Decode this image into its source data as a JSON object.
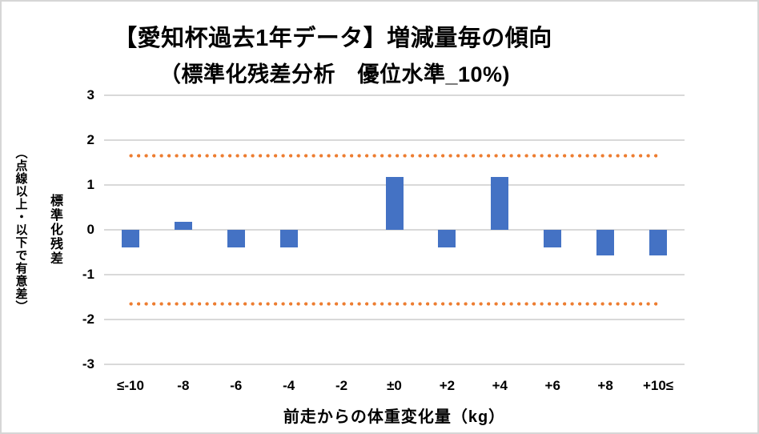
{
  "frame": {
    "background": "#ffffff",
    "border_color": "#d6d6d6"
  },
  "chart_data": {
    "type": "bar",
    "title_line1": "【愛知杯過去1年データ】増減量毎の傾向",
    "title_line2": "（標準化残差分析　優位水準_10%)",
    "categories": [
      "≤-10",
      "-8",
      "-6",
      "-4",
      "-2",
      "±0",
      "+2",
      "+4",
      "+6",
      "+8",
      "+10≤"
    ],
    "values": [
      -0.4,
      0.18,
      -0.4,
      -0.4,
      0,
      1.17,
      -0.4,
      1.17,
      -0.4,
      -0.57,
      -0.57
    ],
    "xlabel": "前走からの体重変化量（kg）",
    "ylabel_main": "標準化残差",
    "ylabel_note": "（点線以上・以下で有意差）",
    "ylim": [
      -3,
      3
    ],
    "yticks": [
      3,
      2,
      1,
      0,
      -1,
      -2,
      -3
    ],
    "significance_upper": 1.645,
    "significance_lower": -1.645,
    "grid": true,
    "legend": "none",
    "bar_color": "#4472C4",
    "threshold_color": "#ED7D31",
    "gridline_color": "#D9D9D9",
    "text_color": "#000000"
  }
}
